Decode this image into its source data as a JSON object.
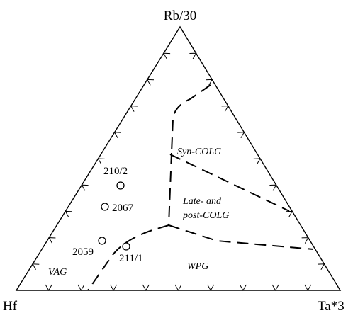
{
  "diagram": {
    "apices": {
      "top": "Rb/30",
      "left": "Hf",
      "right": "Ta*3"
    },
    "fields": {
      "syn_colg": "Syn-COLG",
      "late_post_line1": "Late- and",
      "late_post_line2": "post-COLG",
      "vag": "VAG",
      "wpg": "WPG"
    },
    "samples": [
      {
        "label": "210/2"
      },
      {
        "label": "2067"
      },
      {
        "label": "2059"
      },
      {
        "label": "211/1"
      }
    ]
  }
}
